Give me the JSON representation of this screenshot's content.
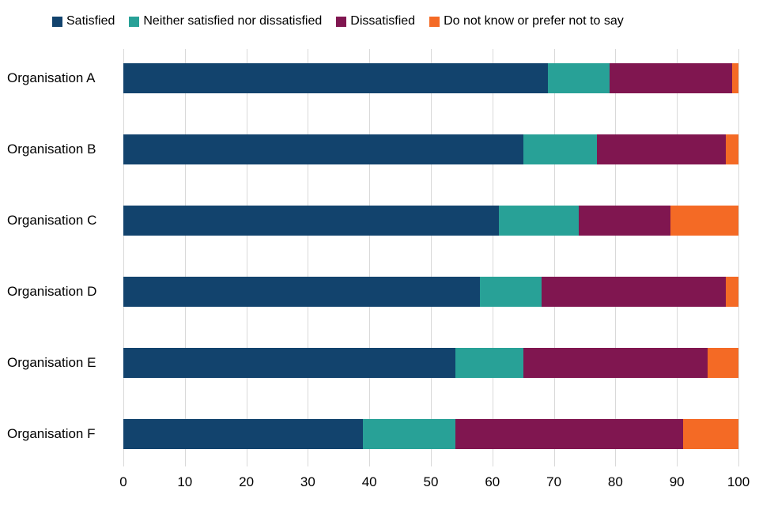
{
  "chart_data": {
    "type": "bar",
    "orientation": "horizontal",
    "stacked": true,
    "categories": [
      "Organisation A",
      "Organisation B",
      "Organisation C",
      "Organisation D",
      "Organisation E",
      "Organisation F"
    ],
    "series": [
      {
        "name": "Satisfied",
        "color": "#12436D",
        "values": [
          69,
          65,
          61,
          58,
          54,
          39
        ]
      },
      {
        "name": "Neither satisfied nor dissatisfied",
        "color": "#28A197",
        "values": [
          10,
          12,
          13,
          10,
          11,
          15
        ]
      },
      {
        "name": "Dissatisfied",
        "color": "#801650",
        "values": [
          20,
          21,
          15,
          30,
          30,
          37
        ]
      },
      {
        "name": "Do not know or prefer not to say",
        "color": "#F46A25",
        "values": [
          1,
          2,
          11,
          2,
          5,
          9
        ]
      }
    ],
    "title": "",
    "xlabel": "",
    "ylabel": "",
    "xlim": [
      0,
      100
    ],
    "x_ticks": [
      0,
      10,
      20,
      30,
      40,
      50,
      60,
      70,
      80,
      90,
      100
    ],
    "grid": true,
    "gridline_color": "#d9d9d9",
    "legend_position": "top"
  }
}
